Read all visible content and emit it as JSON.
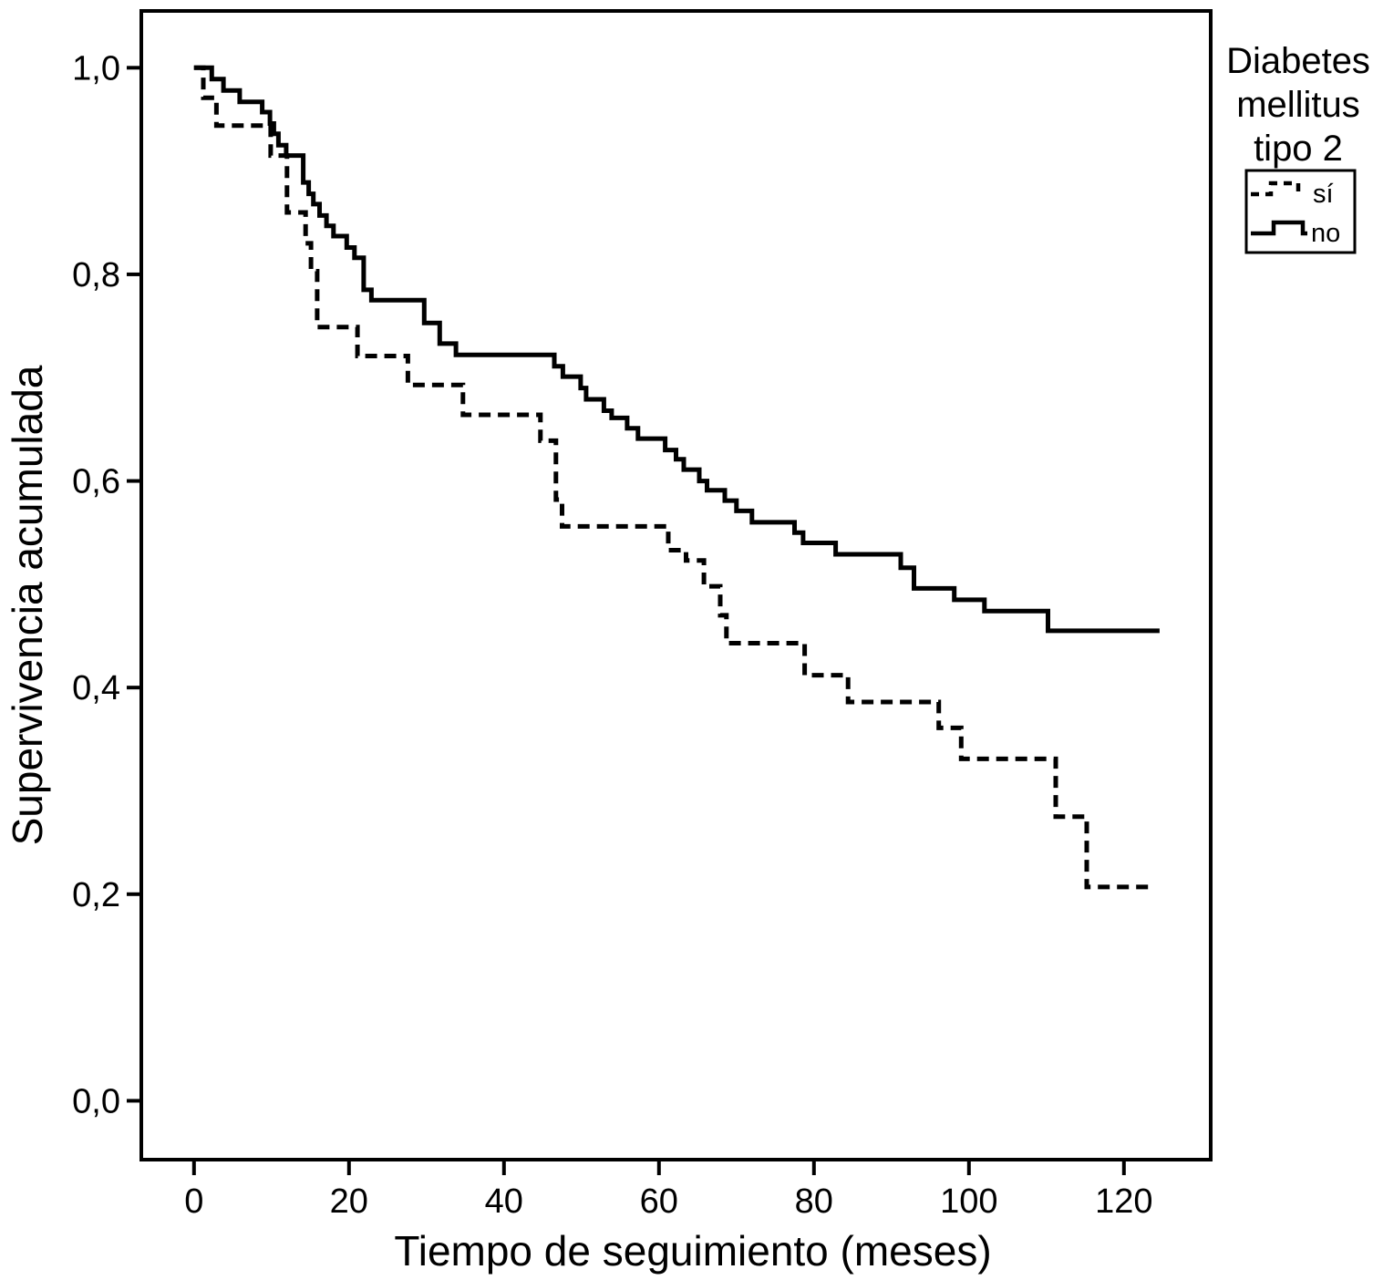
{
  "chart_data": {
    "type": "line",
    "subtype": "kaplan_meier_step_survival",
    "title": "",
    "xlabel": "Tiempo de seguimiento (meses)",
    "ylabel": "Supervivencia acumulada",
    "grid": false,
    "background_color": "#ffffff",
    "line_color": "#000000",
    "xlim": [
      -6.8,
      131.2
    ],
    "ylim": [
      -0.057,
      1.055
    ],
    "x_ticks": [
      {
        "value": 0,
        "label": "0"
      },
      {
        "value": 20,
        "label": "20"
      },
      {
        "value": 40,
        "label": "40"
      },
      {
        "value": 60,
        "label": "60"
      },
      {
        "value": 80,
        "label": "80"
      },
      {
        "value": 100,
        "label": "100"
      },
      {
        "value": 120,
        "label": "120"
      }
    ],
    "y_ticks": [
      {
        "value": 1.0,
        "label": "1,0"
      },
      {
        "value": 0.8,
        "label": "0,8"
      },
      {
        "value": 0.6,
        "label": "0,6"
      },
      {
        "value": 0.4,
        "label": "0,4"
      },
      {
        "value": 0.2,
        "label": "0,2"
      },
      {
        "value": 0.0,
        "label": "0,0"
      }
    ],
    "legend": {
      "title_lines": [
        "Diabetes",
        "mellitus",
        "tipo 2"
      ],
      "position": "top-right-outside",
      "entries": [
        {
          "label": "sí",
          "line_style": "dashed",
          "color": "#000000"
        },
        {
          "label": "no",
          "line_style": "solid",
          "color": "#000000"
        }
      ]
    },
    "series": [
      {
        "name": "sí",
        "line_style": "dashed",
        "color": "#000000",
        "end_month": 123.7,
        "steps": [
          [
            0,
            1.0
          ],
          [
            1.2,
            0.971
          ],
          [
            2.9,
            0.944
          ],
          [
            9.9,
            0.915
          ],
          [
            12.0,
            0.86
          ],
          [
            14.4,
            0.83
          ],
          [
            15.1,
            0.803
          ],
          [
            15.9,
            0.749
          ],
          [
            21.1,
            0.721
          ],
          [
            27.6,
            0.693
          ],
          [
            34.7,
            0.664
          ],
          [
            44.7,
            0.639
          ],
          [
            46.7,
            0.582
          ],
          [
            47.5,
            0.556
          ],
          [
            61.2,
            0.533
          ],
          [
            63.5,
            0.523
          ],
          [
            65.8,
            0.498
          ],
          [
            67.9,
            0.47
          ],
          [
            68.7,
            0.443
          ],
          [
            78.8,
            0.412
          ],
          [
            84.4,
            0.386
          ],
          [
            96.1,
            0.361
          ],
          [
            99.0,
            0.331
          ],
          [
            111.2,
            0.275
          ],
          [
            115.2,
            0.207
          ]
        ]
      },
      {
        "name": "no",
        "line_style": "solid",
        "color": "#000000",
        "end_month": 124.6,
        "steps": [
          [
            0,
            1.0
          ],
          [
            2.3,
            0.989
          ],
          [
            3.8,
            0.978
          ],
          [
            5.9,
            0.967
          ],
          [
            8.8,
            0.957
          ],
          [
            9.8,
            0.946
          ],
          [
            10.3,
            0.936
          ],
          [
            10.9,
            0.925
          ],
          [
            11.9,
            0.915
          ],
          [
            14.1,
            0.889
          ],
          [
            14.8,
            0.878
          ],
          [
            15.4,
            0.868
          ],
          [
            16.2,
            0.857
          ],
          [
            17.1,
            0.847
          ],
          [
            18.0,
            0.837
          ],
          [
            19.7,
            0.826
          ],
          [
            20.7,
            0.816
          ],
          [
            21.9,
            0.785
          ],
          [
            22.9,
            0.775
          ],
          [
            29.7,
            0.753
          ],
          [
            31.7,
            0.733
          ],
          [
            33.8,
            0.722
          ],
          [
            46.5,
            0.711
          ],
          [
            47.6,
            0.701
          ],
          [
            49.9,
            0.69
          ],
          [
            50.6,
            0.679
          ],
          [
            52.9,
            0.668
          ],
          [
            53.9,
            0.661
          ],
          [
            55.9,
            0.651
          ],
          [
            57.3,
            0.641
          ],
          [
            60.8,
            0.63
          ],
          [
            62.2,
            0.621
          ],
          [
            63.2,
            0.611
          ],
          [
            65.2,
            0.6
          ],
          [
            66.2,
            0.591
          ],
          [
            68.5,
            0.581
          ],
          [
            70.0,
            0.571
          ],
          [
            72.0,
            0.56
          ],
          [
            77.5,
            0.55
          ],
          [
            78.6,
            0.54
          ],
          [
            82.8,
            0.529
          ],
          [
            91.2,
            0.516
          ],
          [
            92.9,
            0.496
          ],
          [
            98.1,
            0.485
          ],
          [
            102.0,
            0.474
          ],
          [
            110.2,
            0.455
          ]
        ]
      }
    ]
  },
  "colors": {
    "background": "#ffffff",
    "frame": "#000000",
    "text": "#000000",
    "curve": "#000000"
  }
}
